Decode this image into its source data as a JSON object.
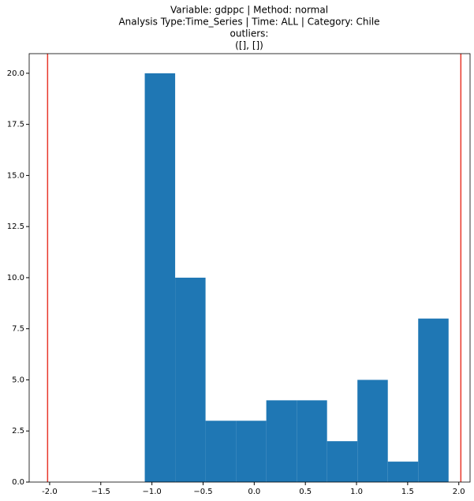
{
  "chart_data": {
    "type": "histogram",
    "title": [
      "Variable: gdppc | Method: normal",
      "Analysis Type:Time_Series | Time: ALL | Category: Chile",
      "outliers:",
      "([], [])"
    ],
    "bins": [
      -1.07,
      -0.773,
      -0.476,
      -0.179,
      0.118,
      0.415,
      0.712,
      1.009,
      1.306,
      1.603,
      1.9
    ],
    "values": [
      20,
      10,
      3,
      3,
      4,
      4,
      2,
      5,
      1,
      8
    ],
    "color": "#1f77b4",
    "vlines": [
      -2.02,
      2.02
    ],
    "vline_color": "#e8382b",
    "xlim": [
      -2.2,
      2.11
    ],
    "ylim": [
      0,
      20.96
    ],
    "xticks": [
      {
        "value": -2,
        "label": "-2.0"
      },
      {
        "value": -1.5,
        "label": "−1.5"
      },
      {
        "value": -1,
        "label": "−1.0"
      },
      {
        "value": -0.5,
        "label": "−0.5"
      },
      {
        "value": 0,
        "label": "0.0"
      },
      {
        "value": 0.5,
        "label": "0.5"
      },
      {
        "value": 1,
        "label": "1.0"
      },
      {
        "value": 1.5,
        "label": "1.5"
      },
      {
        "value": 2,
        "label": "2.0"
      }
    ],
    "yticks": [
      {
        "value": 0,
        "label": "0.0"
      },
      2.5,
      {
        "value": 5,
        "label": "5.0"
      },
      7.5,
      {
        "value": 10,
        "label": "10.0"
      },
      12.5,
      {
        "value": 15,
        "label": "15.0"
      },
      17.5,
      {
        "value": 20,
        "label": "20.0"
      }
    ]
  }
}
